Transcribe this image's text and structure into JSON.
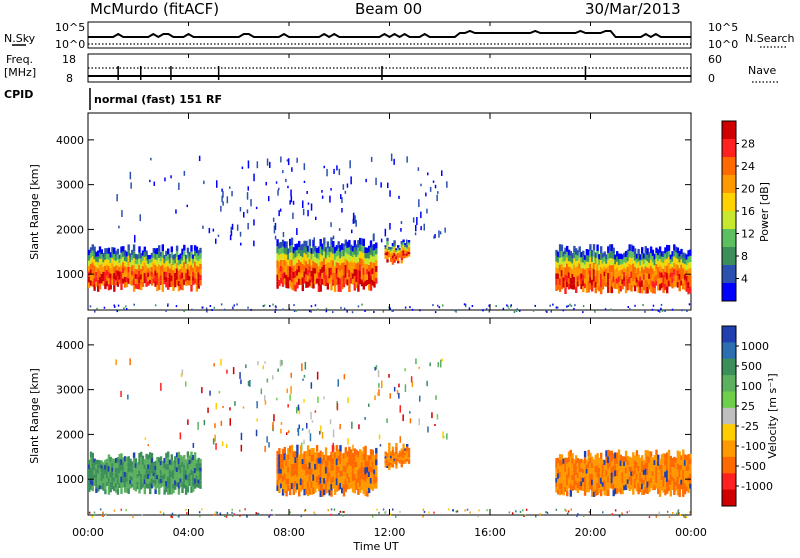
{
  "header": {
    "station": "McMurdo  (fitACF)",
    "beam": "Beam 00",
    "date": "30/Mar/2013"
  },
  "status_panels": {
    "nsky_label": "N.Sky",
    "nsky_ticks": [
      "10^5",
      "10^0"
    ],
    "nsearch_label": "N.Search",
    "nsearch_ticks": [
      "10^5",
      "10^0"
    ],
    "freq_label": "Freq.",
    "freq_unit": "[MHz]",
    "freq_ticks": [
      "18",
      "8"
    ],
    "nave_label": "Nave",
    "nave_ticks": [
      "60",
      "0"
    ],
    "cpid_label": "CPID",
    "cpid_value": "normal (fast) 151 RF"
  },
  "chart_data": [
    {
      "type": "heatmap",
      "name": "power-panel",
      "ylabel": "Slant Range [km]",
      "xlabel": "Time UT",
      "yticks": [
        "1000",
        "2000",
        "3000",
        "4000"
      ],
      "xticks": [
        "00:00",
        "04:00",
        "08:00",
        "12:00",
        "16:00",
        "20:00",
        "00:00"
      ],
      "ylim": [
        200,
        4600
      ],
      "xlim": [
        0,
        24
      ],
      "colorbar": {
        "label": "Power [dB]",
        "ticks": [
          "28",
          "24",
          "20",
          "16",
          "12",
          "8",
          "4"
        ],
        "colors": [
          "#d00000",
          "#ff2020",
          "#ff6a00",
          "#ff9900",
          "#ffd200",
          "#c8e830",
          "#5cbf60",
          "#3c8f5a",
          "#2c50b0",
          "#0000ff"
        ]
      },
      "bands": [
        {
          "t0": 0.0,
          "t1": 4.5,
          "r_low": 700,
          "r_high": 1550
        },
        {
          "t0": 7.5,
          "t1": 11.5,
          "r_low": 700,
          "r_high": 1700
        },
        {
          "t0": 11.8,
          "t1": 12.8,
          "r_low": 1300,
          "r_high": 1700
        },
        {
          "t0": 18.6,
          "t1": 24.0,
          "r_low": 650,
          "r_high": 1550
        }
      ]
    },
    {
      "type": "heatmap",
      "name": "velocity-panel",
      "ylabel": "Slant Range [km]",
      "xlabel": "Time UT",
      "yticks": [
        "1000",
        "2000",
        "3000",
        "4000"
      ],
      "xticks": [
        "00:00",
        "04:00",
        "08:00",
        "12:00",
        "16:00",
        "20:00",
        "00:00"
      ],
      "ylim": [
        200,
        4600
      ],
      "xlim": [
        0,
        24
      ],
      "colorbar": {
        "label": "Velocity  [m s⁻¹]",
        "ticks": [
          "1000",
          "500",
          "100",
          "25",
          "-25",
          "-100",
          "-500",
          "-1000"
        ],
        "colors": [
          "#2040b0",
          "#2c6fb0",
          "#3c8f5a",
          "#5cb060",
          "#6ed04a",
          "#bfbfbf",
          "#ffcc00",
          "#ff9900",
          "#ff6a00",
          "#ff2020",
          "#d00000"
        ]
      },
      "bands": [
        {
          "t0": 0.0,
          "t1": 4.5,
          "r_low": 750,
          "r_high": 1500
        },
        {
          "t0": 7.5,
          "t1": 11.5,
          "r_low": 700,
          "r_high": 1650
        },
        {
          "t0": 11.8,
          "t1": 12.8,
          "r_low": 1300,
          "r_high": 1700
        },
        {
          "t0": 18.6,
          "t1": 24.0,
          "r_low": 700,
          "r_high": 1550
        }
      ]
    }
  ],
  "colors": {
    "power_core": "#d00000",
    "power_edge": "#2c50b0",
    "velocity_east": "#3c8f5a",
    "velocity_west": "#ff9900"
  }
}
